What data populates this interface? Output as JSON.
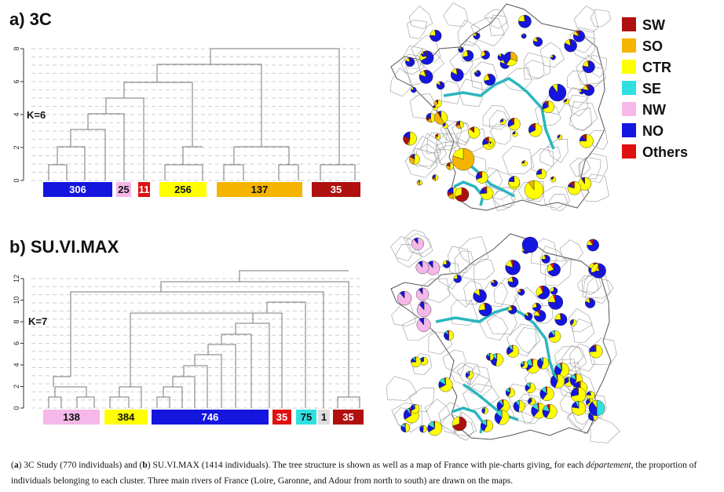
{
  "panels": [
    {
      "title": "a) 3C",
      "k_label": "K=6",
      "chart_data": {
        "type": "dendrogram",
        "ylim": [
          0,
          8
        ],
        "y_ticks": [
          0,
          2,
          4,
          6,
          8
        ],
        "cut_k": 6,
        "clusters": [
          {
            "label": "306",
            "size": 306,
            "color": "#1515e0"
          },
          {
            "label": "25",
            "size": 25,
            "color": "#f5b8e8"
          },
          {
            "label": "11",
            "size": 11,
            "color": "#e01010"
          },
          {
            "label": "256",
            "size": 256,
            "color": "#ffff00"
          },
          {
            "label": "137",
            "size": 137,
            "color": "#f5b400"
          },
          {
            "label": "35",
            "size": 35,
            "color": "#b01010"
          }
        ]
      }
    },
    {
      "title": "b) SU.VI.MAX",
      "k_label": "K=7",
      "chart_data": {
        "type": "dendrogram",
        "ylim": [
          0,
          12
        ],
        "y_ticks": [
          0,
          2,
          4,
          6,
          8,
          10,
          12
        ],
        "cut_k": 7,
        "clusters": [
          {
            "label": "138",
            "size": 138,
            "color": "#f5b8e8"
          },
          {
            "label": "384",
            "size": 384,
            "color": "#ffff00"
          },
          {
            "label": "746",
            "size": 746,
            "color": "#1515e0"
          },
          {
            "label": "35",
            "size": 35,
            "color": "#e01010"
          },
          {
            "label": "75",
            "size": 75,
            "color": "#30e0e0"
          },
          {
            "label": "1",
            "size": 1,
            "color": "#dddddd"
          },
          {
            "label": "35",
            "size": 35,
            "color": "#b01010"
          }
        ]
      }
    }
  ],
  "legend": [
    {
      "label": "SW",
      "color": "#b01010"
    },
    {
      "label": "SO",
      "color": "#f5b400"
    },
    {
      "label": "CTR",
      "color": "#ffff00"
    },
    {
      "label": "SE",
      "color": "#30e0e0"
    },
    {
      "label": "NW",
      "color": "#f5b8e8"
    },
    {
      "label": "NO",
      "color": "#1515e0"
    },
    {
      "label": "Others",
      "color": "#e01010"
    }
  ],
  "caption": {
    "a": "a",
    "part1": ") 3C Study (770 individuals) and (",
    "b": "b",
    "part2": ") SU.VI.MAX (1414 individuals). The tree structure is shown as well as a map of France with pie-charts giving, for each ",
    "italic": "département",
    "part3": ", the proportion of individuals belonging to each cluster. Three main rivers of France (Loire, Garonne, and Adour from north to south) are drawn on the maps."
  }
}
